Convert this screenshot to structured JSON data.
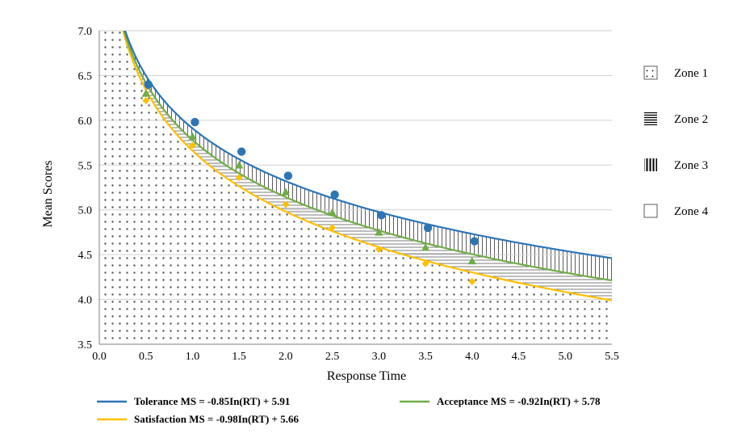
{
  "chart_data": {
    "type": "scatter",
    "xlabel": "Response Time",
    "ylabel": "Mean Scores",
    "xlim": [
      0.0,
      5.5
    ],
    "ylim": [
      3.5,
      7.0
    ],
    "x_ticks": [
      "0.0",
      "0.5",
      "1.0",
      "1.5",
      "2.0",
      "2.5",
      "3.0",
      "3.5",
      "4.0",
      "4.5",
      "5.0",
      "5.5"
    ],
    "y_ticks": [
      "3.5",
      "4.0",
      "4.5",
      "5.0",
      "5.5",
      "6.0",
      "6.5",
      "7.0"
    ],
    "grid": "horizontal",
    "series": [
      {
        "key": "tolerance",
        "color": "#2e75b6",
        "marker": "circle",
        "x": [
          0.5,
          1.0,
          1.5,
          2.0,
          2.5,
          3.0,
          3.5,
          4.0
        ],
        "y": [
          6.4,
          5.98,
          5.65,
          5.38,
          5.17,
          4.94,
          4.8,
          4.65
        ],
        "fit": {
          "a": -0.85,
          "b": 5.91
        },
        "legend": "Tolerance MS = -0.85In(RT) + 5.91"
      },
      {
        "key": "acceptance",
        "color": "#70ad47",
        "marker": "triangle",
        "x": [
          0.5,
          1.0,
          1.5,
          2.0,
          2.5,
          3.0,
          3.5,
          4.0
        ],
        "y": [
          6.3,
          5.82,
          5.5,
          5.2,
          4.97,
          4.75,
          4.58,
          4.43
        ],
        "fit": {
          "a": -0.92,
          "b": 5.78
        },
        "legend": "Acceptance MS = -0.92In(RT) + 5.78"
      },
      {
        "key": "satisfaction",
        "color": "#ffc000",
        "marker": "diamond",
        "x": [
          0.5,
          1.0,
          1.5,
          2.0,
          2.5,
          3.0,
          3.5,
          4.0
        ],
        "y": [
          6.22,
          5.72,
          5.36,
          5.06,
          4.8,
          4.56,
          4.4,
          4.2
        ],
        "fit": {
          "a": -0.98,
          "b": 5.66
        },
        "legend": "Satisfaction MS = -0.98In(RT) + 5.66"
      }
    ],
    "zones": [
      {
        "label": "Zone 1",
        "pattern": "dots"
      },
      {
        "label": "Zone 2",
        "pattern": "horizontal-lines"
      },
      {
        "label": "Zone 3",
        "pattern": "vertical-lines"
      },
      {
        "label": "Zone 4",
        "pattern": "blank"
      }
    ]
  }
}
